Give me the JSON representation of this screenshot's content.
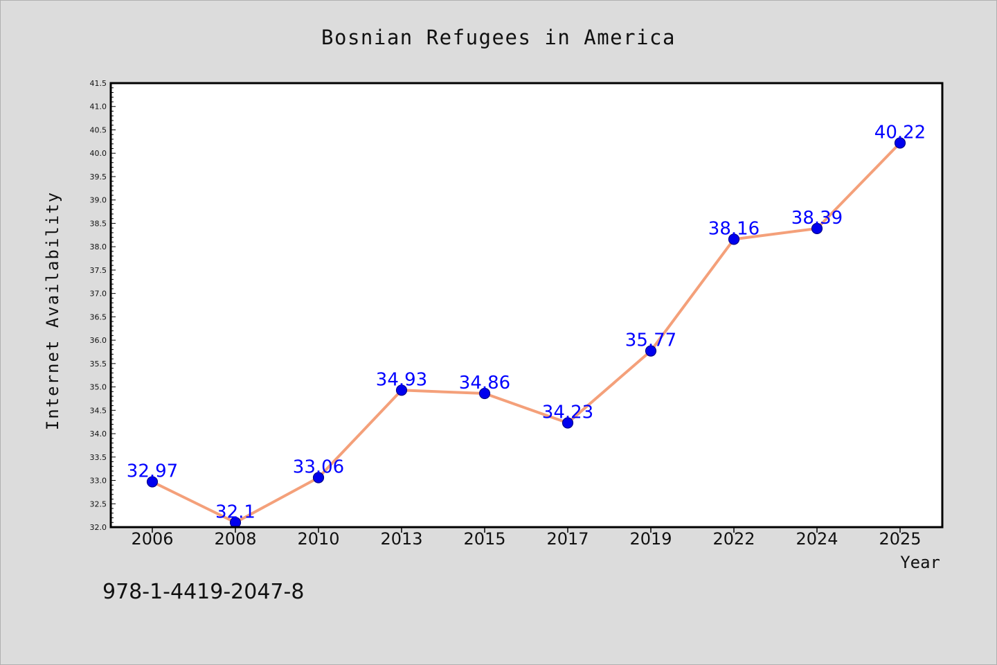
{
  "chart_data": {
    "type": "line",
    "title": "Bosnian Refugees in America",
    "xlabel": "Year",
    "ylabel": "Internet Availability",
    "categories": [
      "2006",
      "2008",
      "2010",
      "2013",
      "2015",
      "2017",
      "2019",
      "2022",
      "2024",
      "2025"
    ],
    "series": [
      {
        "values": [
          32.97,
          32.1,
          33.06,
          34.93,
          34.86,
          34.23,
          35.77,
          38.16,
          38.39,
          40.22
        ],
        "labels": [
          "32.97",
          "32.1",
          "33.06",
          "34.93",
          "34.86",
          "34.23",
          "35.77",
          "38.16",
          "38.39",
          "40.22"
        ]
      }
    ],
    "ylim": [
      32.0,
      41.5
    ],
    "yticks": [
      "32.0",
      "32.5",
      "33.0",
      "33.5",
      "34.0",
      "34.5",
      "35.0",
      "35.5",
      "36.0",
      "36.5",
      "37.0",
      "37.5",
      "38.0",
      "38.5",
      "39.0",
      "39.5",
      "40.0",
      "40.5",
      "41.0",
      "41.5"
    ],
    "grid": false,
    "legend": "none",
    "colors": {
      "line": "#f4a07a",
      "marker": "#0000ee",
      "marker_edge": "#00008b",
      "data_label": "#0000ff",
      "background": "#dcdcdc",
      "plot_background": "#ffffff"
    }
  },
  "annotation": "978-1-4419-2047-8"
}
